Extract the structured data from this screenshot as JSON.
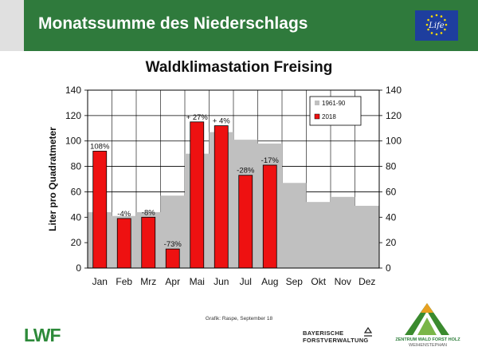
{
  "header": {
    "title": "Monatssumme des Niederschlags"
  },
  "logos": {
    "eu_life": {
      "text": "Life",
      "icon": "eu-flag-icon"
    },
    "lwf": "LWF",
    "bayern": {
      "line1": "BAYERISCHE",
      "line2": "FORSTVERWALTUNG"
    },
    "zwf": {
      "line1": "ZENTRUM WALD FORST HOLZ",
      "line2": "WEIHENSTEPHAN"
    }
  },
  "credit": "Grafik: Raspe, September 18",
  "colors": {
    "header": "#2f7a3c",
    "bar_2018": "#ee1111",
    "bar_normal": "#c0c0c0"
  },
  "chart_data": {
    "type": "bar",
    "title": "Waldklimastation Freising",
    "ylabel": "Liter pro Quadratmeter",
    "xlabel": "",
    "categories": [
      "Jan",
      "Feb",
      "Mrz",
      "Apr",
      "Mai",
      "Jun",
      "Jul",
      "Aug",
      "Sep",
      "Okt",
      "Nov",
      "Dez"
    ],
    "ylim": [
      0,
      140
    ],
    "yticks": [
      0,
      20,
      40,
      60,
      80,
      100,
      120,
      140
    ],
    "grid": true,
    "legend_position": "top-right",
    "series": [
      {
        "name": "1961-90",
        "color": "#c0c0c0",
        "values": [
          44,
          41,
          44,
          57,
          90,
          107,
          101,
          98,
          67,
          52,
          56,
          49
        ]
      },
      {
        "name": "2018",
        "color": "#ee1111",
        "values": [
          92,
          39,
          40,
          15,
          115,
          112,
          73,
          81,
          null,
          null,
          null,
          null
        ]
      }
    ],
    "annotations": [
      "108%",
      "-4%",
      "-8%",
      "-73%",
      "+ 27%",
      "+ 4%",
      "-28%",
      "-17%",
      null,
      null,
      null,
      null
    ]
  }
}
